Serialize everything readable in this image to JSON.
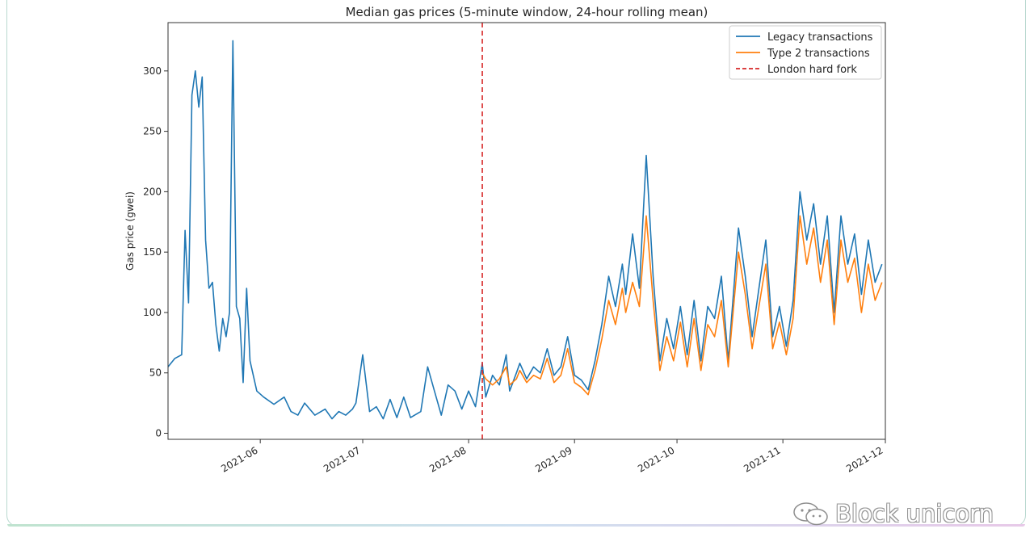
{
  "chart_data": {
    "type": "line",
    "title": "Median gas prices (5-minute window, 24-hour rolling mean)",
    "xlabel": "",
    "ylabel": "Gas price (gwei)",
    "xlim": [
      "2021-05-05",
      "2021-12-01"
    ],
    "ylim": [
      -5,
      340
    ],
    "yticks": [
      0,
      50,
      100,
      150,
      200,
      250,
      300
    ],
    "xticks": [
      "2021-06",
      "2021-07",
      "2021-08",
      "2021-09",
      "2021-10",
      "2021-11",
      "2021-12"
    ],
    "grid": false,
    "legend": "top-right",
    "series": [
      {
        "name": "Legacy transactions",
        "color": "#1f77b4",
        "points": [
          [
            "2021-05-05",
            55
          ],
          [
            "2021-05-07",
            62
          ],
          [
            "2021-05-09",
            65
          ],
          [
            "2021-05-10",
            168
          ],
          [
            "2021-05-11",
            108
          ],
          [
            "2021-05-12",
            280
          ],
          [
            "2021-05-13",
            300
          ],
          [
            "2021-05-14",
            270
          ],
          [
            "2021-05-15",
            295
          ],
          [
            "2021-05-16",
            160
          ],
          [
            "2021-05-17",
            120
          ],
          [
            "2021-05-18",
            125
          ],
          [
            "2021-05-19",
            90
          ],
          [
            "2021-05-20",
            68
          ],
          [
            "2021-05-21",
            95
          ],
          [
            "2021-05-22",
            80
          ],
          [
            "2021-05-23",
            100
          ],
          [
            "2021-05-24",
            325
          ],
          [
            "2021-05-25",
            105
          ],
          [
            "2021-05-26",
            95
          ],
          [
            "2021-05-27",
            42
          ],
          [
            "2021-05-28",
            120
          ],
          [
            "2021-05-29",
            60
          ],
          [
            "2021-05-31",
            35
          ],
          [
            "2021-06-02",
            30
          ],
          [
            "2021-06-05",
            24
          ],
          [
            "2021-06-08",
            30
          ],
          [
            "2021-06-10",
            18
          ],
          [
            "2021-06-12",
            15
          ],
          [
            "2021-06-14",
            25
          ],
          [
            "2021-06-17",
            15
          ],
          [
            "2021-06-20",
            20
          ],
          [
            "2021-06-22",
            12
          ],
          [
            "2021-06-24",
            18
          ],
          [
            "2021-06-26",
            15
          ],
          [
            "2021-06-28",
            20
          ],
          [
            "2021-06-29",
            25
          ],
          [
            "2021-07-01",
            65
          ],
          [
            "2021-07-03",
            18
          ],
          [
            "2021-07-05",
            22
          ],
          [
            "2021-07-07",
            12
          ],
          [
            "2021-07-09",
            28
          ],
          [
            "2021-07-11",
            13
          ],
          [
            "2021-07-13",
            30
          ],
          [
            "2021-07-15",
            13
          ],
          [
            "2021-07-18",
            18
          ],
          [
            "2021-07-20",
            55
          ],
          [
            "2021-07-22",
            35
          ],
          [
            "2021-07-24",
            15
          ],
          [
            "2021-07-26",
            40
          ],
          [
            "2021-07-28",
            35
          ],
          [
            "2021-07-30",
            20
          ],
          [
            "2021-08-01",
            35
          ],
          [
            "2021-08-03",
            22
          ],
          [
            "2021-08-05",
            58
          ],
          [
            "2021-08-06",
            30
          ],
          [
            "2021-08-08",
            48
          ],
          [
            "2021-08-10",
            40
          ],
          [
            "2021-08-12",
            65
          ],
          [
            "2021-08-13",
            35
          ],
          [
            "2021-08-15",
            50
          ],
          [
            "2021-08-16",
            58
          ],
          [
            "2021-08-18",
            45
          ],
          [
            "2021-08-20",
            55
          ],
          [
            "2021-08-22",
            50
          ],
          [
            "2021-08-24",
            70
          ],
          [
            "2021-08-26",
            48
          ],
          [
            "2021-08-28",
            55
          ],
          [
            "2021-08-30",
            80
          ],
          [
            "2021-09-01",
            48
          ],
          [
            "2021-09-03",
            44
          ],
          [
            "2021-09-05",
            36
          ],
          [
            "2021-09-07",
            60
          ],
          [
            "2021-09-09",
            90
          ],
          [
            "2021-09-11",
            130
          ],
          [
            "2021-09-13",
            105
          ],
          [
            "2021-09-15",
            140
          ],
          [
            "2021-09-16",
            115
          ],
          [
            "2021-09-18",
            165
          ],
          [
            "2021-09-20",
            120
          ],
          [
            "2021-09-22",
            230
          ],
          [
            "2021-09-24",
            130
          ],
          [
            "2021-09-26",
            60
          ],
          [
            "2021-09-28",
            95
          ],
          [
            "2021-09-30",
            70
          ],
          [
            "2021-10-02",
            105
          ],
          [
            "2021-10-04",
            65
          ],
          [
            "2021-10-06",
            110
          ],
          [
            "2021-10-08",
            60
          ],
          [
            "2021-10-10",
            105
          ],
          [
            "2021-10-12",
            95
          ],
          [
            "2021-10-14",
            130
          ],
          [
            "2021-10-16",
            60
          ],
          [
            "2021-10-19",
            170
          ],
          [
            "2021-10-21",
            130
          ],
          [
            "2021-10-23",
            80
          ],
          [
            "2021-10-25",
            120
          ],
          [
            "2021-10-27",
            160
          ],
          [
            "2021-10-29",
            80
          ],
          [
            "2021-10-31",
            105
          ],
          [
            "2021-11-02",
            72
          ],
          [
            "2021-11-04",
            110
          ],
          [
            "2021-11-06",
            200
          ],
          [
            "2021-11-08",
            160
          ],
          [
            "2021-11-10",
            190
          ],
          [
            "2021-11-12",
            140
          ],
          [
            "2021-11-14",
            180
          ],
          [
            "2021-11-16",
            100
          ],
          [
            "2021-11-18",
            180
          ],
          [
            "2021-11-20",
            140
          ],
          [
            "2021-11-22",
            165
          ],
          [
            "2021-11-24",
            115
          ],
          [
            "2021-11-26",
            160
          ],
          [
            "2021-11-28",
            125
          ],
          [
            "2021-11-30",
            140
          ]
        ]
      },
      {
        "name": "Type 2 transactions",
        "color": "#ff7f0e",
        "points": [
          [
            "2021-08-05",
            50
          ],
          [
            "2021-08-06",
            45
          ],
          [
            "2021-08-08",
            40
          ],
          [
            "2021-08-10",
            45
          ],
          [
            "2021-08-12",
            55
          ],
          [
            "2021-08-13",
            40
          ],
          [
            "2021-08-15",
            45
          ],
          [
            "2021-08-16",
            52
          ],
          [
            "2021-08-18",
            42
          ],
          [
            "2021-08-20",
            48
          ],
          [
            "2021-08-22",
            45
          ],
          [
            "2021-08-24",
            62
          ],
          [
            "2021-08-26",
            42
          ],
          [
            "2021-08-28",
            48
          ],
          [
            "2021-08-30",
            70
          ],
          [
            "2021-09-01",
            42
          ],
          [
            "2021-09-03",
            38
          ],
          [
            "2021-09-05",
            32
          ],
          [
            "2021-09-07",
            52
          ],
          [
            "2021-09-09",
            78
          ],
          [
            "2021-09-11",
            110
          ],
          [
            "2021-09-13",
            90
          ],
          [
            "2021-09-15",
            120
          ],
          [
            "2021-09-16",
            100
          ],
          [
            "2021-09-18",
            125
          ],
          [
            "2021-09-20",
            105
          ],
          [
            "2021-09-22",
            180
          ],
          [
            "2021-09-24",
            110
          ],
          [
            "2021-09-26",
            52
          ],
          [
            "2021-09-28",
            80
          ],
          [
            "2021-09-30",
            60
          ],
          [
            "2021-10-02",
            92
          ],
          [
            "2021-10-04",
            55
          ],
          [
            "2021-10-06",
            95
          ],
          [
            "2021-10-08",
            52
          ],
          [
            "2021-10-10",
            90
          ],
          [
            "2021-10-12",
            80
          ],
          [
            "2021-10-14",
            110
          ],
          [
            "2021-10-16",
            55
          ],
          [
            "2021-10-19",
            150
          ],
          [
            "2021-10-21",
            115
          ],
          [
            "2021-10-23",
            70
          ],
          [
            "2021-10-25",
            105
          ],
          [
            "2021-10-27",
            140
          ],
          [
            "2021-10-29",
            70
          ],
          [
            "2021-10-31",
            92
          ],
          [
            "2021-11-02",
            65
          ],
          [
            "2021-11-04",
            95
          ],
          [
            "2021-11-06",
            180
          ],
          [
            "2021-11-08",
            140
          ],
          [
            "2021-11-10",
            170
          ],
          [
            "2021-11-12",
            125
          ],
          [
            "2021-11-14",
            160
          ],
          [
            "2021-11-16",
            90
          ],
          [
            "2021-11-18",
            160
          ],
          [
            "2021-11-20",
            125
          ],
          [
            "2021-11-22",
            145
          ],
          [
            "2021-11-24",
            100
          ],
          [
            "2021-11-26",
            140
          ],
          [
            "2021-11-28",
            110
          ],
          [
            "2021-11-30",
            125
          ]
        ]
      }
    ],
    "vline": {
      "name": "London hard fork",
      "x": "2021-08-05",
      "color": "#d62728",
      "style": "dashed"
    }
  },
  "watermark": {
    "text": "Block unicorn",
    "icon": "wechat-icon"
  }
}
